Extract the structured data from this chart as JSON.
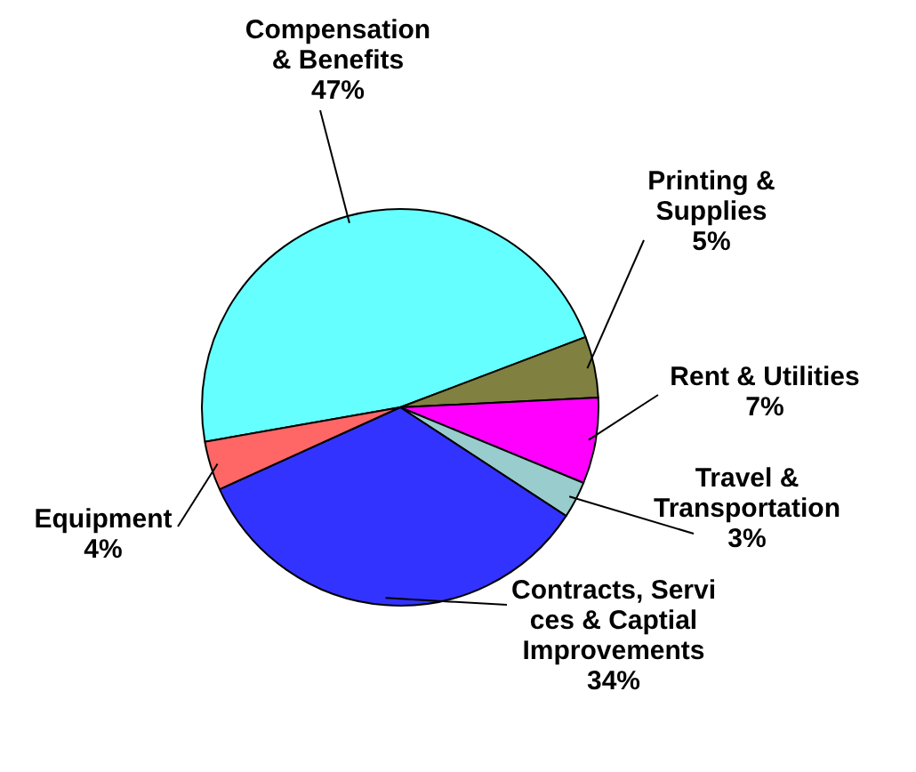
{
  "chart_data": {
    "type": "pie",
    "categories": [
      "Compensation & Benefits",
      "Printing & Supplies",
      "Rent & Utilities",
      "Travel & Transportation",
      "Contracts, Servi ces & Captial Improvements",
      "Equipment"
    ],
    "values": [
      47,
      5,
      7,
      3,
      34,
      4
    ],
    "value_labels": [
      "47%",
      "5%",
      "7%",
      "3%",
      "34%",
      "4%"
    ],
    "colors": [
      "#66ffff",
      "#808040",
      "#ff00ff",
      "#99cccc",
      "#3333ff",
      "#ff6666"
    ]
  }
}
